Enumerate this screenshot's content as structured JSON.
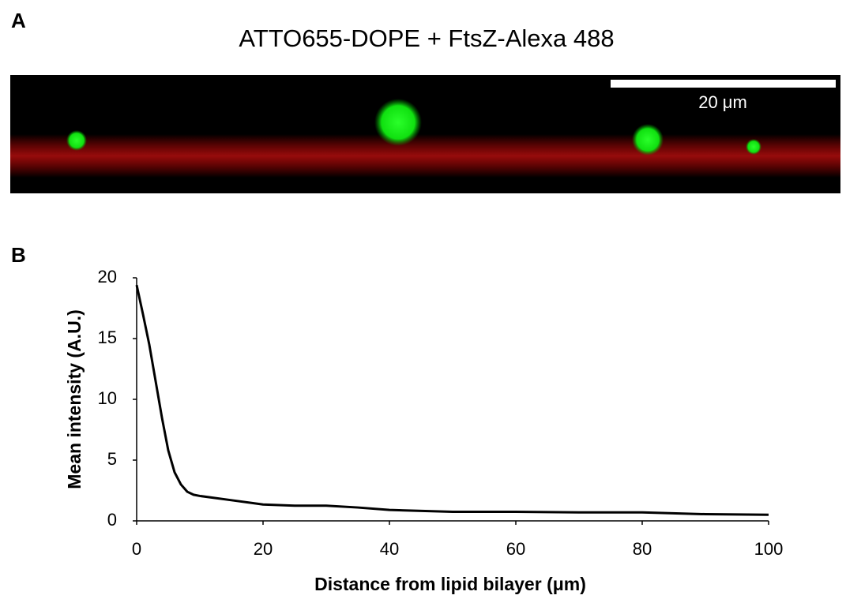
{
  "panel_labels": [
    "A",
    "B"
  ],
  "image": {
    "title": "ATTO655-DOPE + FtsZ-Alexa 488",
    "scale_bar_label": "20 μm"
  },
  "chart_data": {
    "type": "line",
    "x_label": "Distance from lipid bilayer (μm)",
    "y_label": "Mean intensity (A.U.)",
    "x": [
      0,
      1,
      2,
      3,
      4,
      5,
      6,
      7,
      8,
      9,
      10,
      15,
      20,
      25,
      30,
      35,
      40,
      50,
      60,
      70,
      80,
      90,
      100
    ],
    "series": [
      {
        "color": "#000000",
        "values": [
          19.4,
          17,
          14.5,
          11.5,
          8.5,
          5.8,
          4,
          3,
          2.4,
          2.15,
          2.05,
          1.7,
          1.35,
          1.25,
          1.25,
          1.1,
          0.9,
          0.75,
          0.75,
          0.7,
          0.7,
          0.55,
          0.5
        ]
      }
    ],
    "xlim": [
      0,
      100
    ],
    "xticks": [
      0,
      20,
      40,
      60,
      80,
      100
    ],
    "ylim": [
      0,
      20
    ],
    "yticks": [
      0,
      5,
      10,
      15,
      20
    ],
    "grid": false
  }
}
